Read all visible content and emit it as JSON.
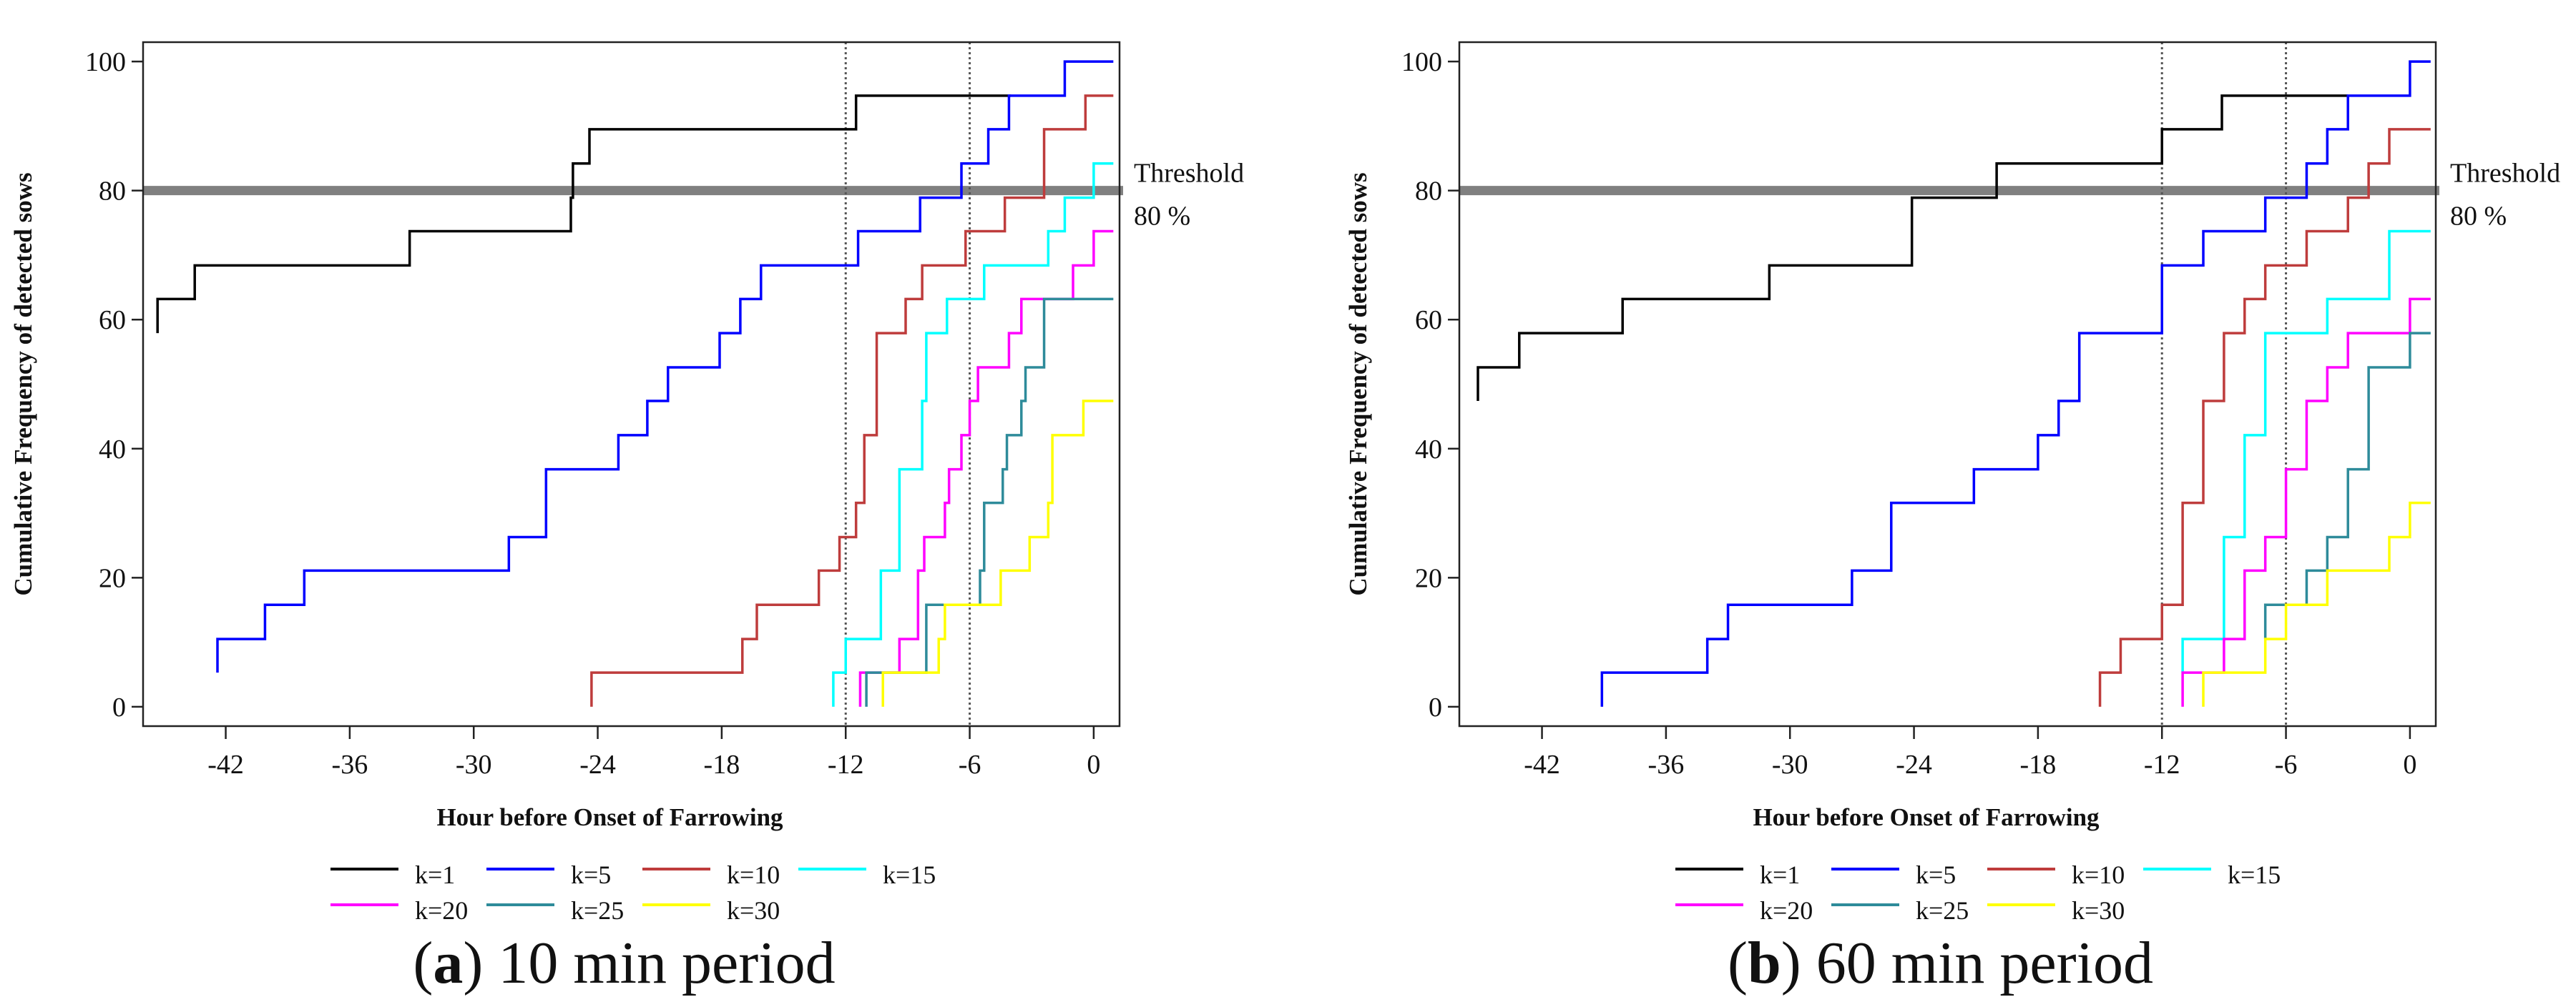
{
  "chart_data": [
    {
      "type": "line",
      "step": true,
      "caption_letter": "a",
      "caption_text": " 10 min period",
      "xlabel": "Hour before Onset of Farrowing",
      "ylabel": "Cumulative Frequency of detected sows",
      "xticks": [
        -42,
        -36,
        -30,
        -24,
        -18,
        -12,
        -6,
        0
      ],
      "yticks": [
        0,
        20,
        40,
        60,
        80,
        100
      ],
      "xlim": [
        -46,
        1.25
      ],
      "ylim": [
        -3,
        103
      ],
      "vlines": [
        -12,
        -6
      ],
      "threshold": {
        "value": 80,
        "label1": "Threshold",
        "label2": "80 %",
        "color": "#808080"
      },
      "legend_position": "bottom",
      "series": [
        {
          "name": "k=1",
          "color": "#000000",
          "points": [
            [
              -45.3,
              57.9
            ],
            [
              -45.3,
              63.2
            ],
            [
              -43.5,
              68.4
            ],
            [
              -33.1,
              73.7
            ],
            [
              -25.3,
              78.9
            ],
            [
              -25.2,
              84.2
            ],
            [
              -24.4,
              89.5
            ],
            [
              -11.5,
              94.7
            ],
            [
              -4,
              94.7
            ]
          ]
        },
        {
          "name": "k=5",
          "color": "#0000ff",
          "points": [
            [
              -42.4,
              5.3
            ],
            [
              -42.4,
              10.5
            ],
            [
              -40.1,
              15.8
            ],
            [
              -38.2,
              21.1
            ],
            [
              -28.3,
              26.3
            ],
            [
              -26.5,
              36.8
            ],
            [
              -23.0,
              42.1
            ],
            [
              -21.6,
              47.4
            ],
            [
              -20.6,
              52.6
            ],
            [
              -18.1,
              57.9
            ],
            [
              -17.1,
              63.2
            ],
            [
              -16.1,
              68.4
            ],
            [
              -11.4,
              73.7
            ],
            [
              -8.4,
              78.9
            ],
            [
              -6.4,
              84.2
            ],
            [
              -5.1,
              89.5
            ],
            [
              -4.1,
              94.7
            ],
            [
              -1.4,
              100
            ],
            [
              0.95,
              100
            ]
          ]
        },
        {
          "name": "k=10",
          "color": "#be3c3c",
          "points": [
            [
              -24.3,
              0
            ],
            [
              -24.3,
              5.3
            ],
            [
              -17.0,
              10.5
            ],
            [
              -16.3,
              15.8
            ],
            [
              -13.3,
              21.1
            ],
            [
              -12.3,
              26.3
            ],
            [
              -11.5,
              31.6
            ],
            [
              -11.1,
              42.1
            ],
            [
              -10.5,
              57.9
            ],
            [
              -9.1,
              63.2
            ],
            [
              -8.3,
              68.4
            ],
            [
              -6.2,
              73.7
            ],
            [
              -4.3,
              78.9
            ],
            [
              -2.4,
              89.5
            ],
            [
              -0.4,
              94.7
            ],
            [
              0.95,
              94.7
            ]
          ]
        },
        {
          "name": "k=15",
          "color": "#00ffff",
          "points": [
            [
              -12.6,
              0
            ],
            [
              -12.6,
              5.3
            ],
            [
              -12.0,
              10.5
            ],
            [
              -10.3,
              21.1
            ],
            [
              -9.4,
              36.8
            ],
            [
              -8.3,
              47.4
            ],
            [
              -8.1,
              57.9
            ],
            [
              -7.1,
              63.2
            ],
            [
              -5.3,
              68.4
            ],
            [
              -2.2,
              73.7
            ],
            [
              -1.4,
              78.9
            ],
            [
              0,
              84.2
            ],
            [
              0.95,
              84.2
            ]
          ]
        },
        {
          "name": "k=20",
          "color": "#ff00ff",
          "points": [
            [
              -11.3,
              0
            ],
            [
              -11.3,
              5.3
            ],
            [
              -9.4,
              10.5
            ],
            [
              -8.5,
              21.1
            ],
            [
              -8.2,
              26.3
            ],
            [
              -7.2,
              31.6
            ],
            [
              -7.0,
              36.8
            ],
            [
              -6.4,
              42.1
            ],
            [
              -6.0,
              47.4
            ],
            [
              -5.6,
              52.6
            ],
            [
              -4.1,
              57.9
            ],
            [
              -3.5,
              63.2
            ],
            [
              -1.0,
              68.4
            ],
            [
              0,
              73.7
            ],
            [
              0.95,
              73.7
            ]
          ]
        },
        {
          "name": "k=25",
          "color": "#2e8b9a",
          "points": [
            [
              -11.0,
              0
            ],
            [
              -11.0,
              5.3
            ],
            [
              -8.1,
              15.8
            ],
            [
              -5.5,
              21.1
            ],
            [
              -5.3,
              31.6
            ],
            [
              -4.4,
              36.8
            ],
            [
              -4.2,
              42.1
            ],
            [
              -3.5,
              47.4
            ],
            [
              -3.3,
              52.6
            ],
            [
              -2.4,
              63.2
            ],
            [
              0.95,
              63.2
            ]
          ]
        },
        {
          "name": "k=30",
          "color": "#ffff00",
          "points": [
            [
              -10.2,
              0
            ],
            [
              -10.2,
              5.3
            ],
            [
              -7.5,
              10.5
            ],
            [
              -7.2,
              15.8
            ],
            [
              -4.5,
              21.1
            ],
            [
              -3.1,
              26.3
            ],
            [
              -2.2,
              31.6
            ],
            [
              -2.0,
              42.1
            ],
            [
              -0.5,
              47.4
            ],
            [
              0.95,
              47.4
            ]
          ]
        }
      ]
    },
    {
      "type": "line",
      "step": true,
      "caption_letter": "b",
      "caption_text": " 60 min period",
      "xlabel": "Hour before Onset of Farrowing",
      "ylabel": "Cumulative Frequency of detected sows",
      "xticks": [
        -42,
        -36,
        -30,
        -24,
        -18,
        -12,
        -6,
        0
      ],
      "yticks": [
        0,
        20,
        40,
        60,
        80,
        100
      ],
      "xlim": [
        -46,
        1.25
      ],
      "ylim": [
        -3,
        103
      ],
      "vlines": [
        -12,
        -6
      ],
      "threshold": {
        "value": 80,
        "label1": "Threshold",
        "label2": "80 %",
        "color": "#808080"
      },
      "legend_position": "bottom",
      "series": [
        {
          "name": "k=1",
          "color": "#000000",
          "points": [
            [
              -45.1,
              47.4
            ],
            [
              -45.1,
              52.6
            ],
            [
              -43.1,
              57.9
            ],
            [
              -38.1,
              63.2
            ],
            [
              -31.0,
              68.4
            ],
            [
              -24.1,
              78.9
            ],
            [
              -20.0,
              84.2
            ],
            [
              -12.0,
              89.5
            ],
            [
              -9.1,
              94.7
            ],
            [
              -3,
              94.7
            ]
          ]
        },
        {
          "name": "k=5",
          "color": "#0000ff",
          "points": [
            [
              -39.1,
              0
            ],
            [
              -39.1,
              5.3
            ],
            [
              -34.0,
              10.5
            ],
            [
              -33.0,
              15.8
            ],
            [
              -27.0,
              21.1
            ],
            [
              -25.1,
              31.6
            ],
            [
              -21.1,
              36.8
            ],
            [
              -18.0,
              42.1
            ],
            [
              -17.0,
              47.4
            ],
            [
              -16.0,
              57.9
            ],
            [
              -12.0,
              68.4
            ],
            [
              -10.0,
              73.7
            ],
            [
              -7.0,
              78.9
            ],
            [
              -5.0,
              84.2
            ],
            [
              -4.0,
              89.5
            ],
            [
              -3.0,
              94.7
            ],
            [
              0,
              100
            ],
            [
              1.0,
              100
            ]
          ]
        },
        {
          "name": "k=10",
          "color": "#be3c3c",
          "points": [
            [
              -15.0,
              0
            ],
            [
              -15.0,
              5.3
            ],
            [
              -14.0,
              10.5
            ],
            [
              -12.0,
              15.8
            ],
            [
              -11.0,
              31.6
            ],
            [
              -10.0,
              47.4
            ],
            [
              -9.0,
              57.9
            ],
            [
              -8.0,
              63.2
            ],
            [
              -7.0,
              68.4
            ],
            [
              -5.0,
              73.7
            ],
            [
              -3.0,
              78.9
            ],
            [
              -2.0,
              84.2
            ],
            [
              -1.0,
              89.5
            ],
            [
              1.0,
              89.5
            ]
          ]
        },
        {
          "name": "k=15",
          "color": "#00ffff",
          "points": [
            [
              -11.0,
              5.3
            ],
            [
              -11.0,
              10.5
            ],
            [
              -9.0,
              26.3
            ],
            [
              -8.0,
              42.1
            ],
            [
              -7.0,
              57.9
            ],
            [
              -4.0,
              63.2
            ],
            [
              -1.0,
              73.7
            ],
            [
              1.0,
              73.7
            ]
          ]
        },
        {
          "name": "k=20",
          "color": "#ff00ff",
          "points": [
            [
              -11.0,
              0
            ],
            [
              -11.0,
              5.3
            ],
            [
              -9.0,
              10.5
            ],
            [
              -8.0,
              21.1
            ],
            [
              -7.0,
              26.3
            ],
            [
              -6.0,
              36.8
            ],
            [
              -5.0,
              47.4
            ],
            [
              -4.0,
              52.6
            ],
            [
              -3.0,
              57.9
            ],
            [
              0,
              63.2
            ],
            [
              1.0,
              63.2
            ]
          ]
        },
        {
          "name": "k=25",
          "color": "#2e8b9a",
          "points": [
            [
              -7.0,
              10.5
            ],
            [
              -7.0,
              15.8
            ],
            [
              -5.0,
              21.1
            ],
            [
              -4.0,
              26.3
            ],
            [
              -3.0,
              36.8
            ],
            [
              -2.0,
              52.6
            ],
            [
              0,
              57.9
            ],
            [
              1.0,
              57.9
            ]
          ]
        },
        {
          "name": "k=30",
          "color": "#ffff00",
          "points": [
            [
              -10.0,
              0
            ],
            [
              -10.0,
              5.3
            ],
            [
              -7.0,
              10.5
            ],
            [
              -6.0,
              15.8
            ],
            [
              -4.0,
              21.1
            ],
            [
              -1.0,
              26.3
            ],
            [
              0,
              31.6
            ],
            [
              1.0,
              31.6
            ]
          ]
        }
      ]
    }
  ]
}
